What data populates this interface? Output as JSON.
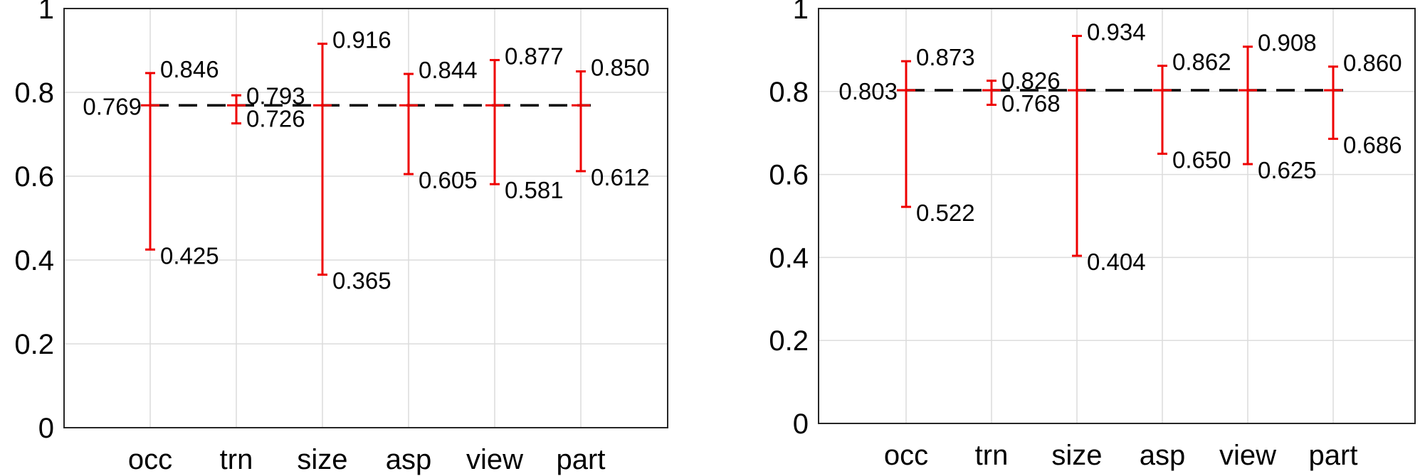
{
  "chart_data": [
    {
      "type": "errorbar",
      "categories": [
        "occ",
        "trn",
        "size",
        "asp",
        "view",
        "part"
      ],
      "ylim": [
        0,
        1
      ],
      "yticks": [
        "0",
        "0.2",
        "0.4",
        "0.6",
        "0.8",
        "1"
      ],
      "grid": true,
      "baseline": {
        "value": 0.769,
        "label": "0.769",
        "style": "dashed",
        "color": "#000000"
      },
      "series": [
        {
          "color": "#ee0000",
          "values": [
            {
              "center": 0.769,
              "high": 0.846,
              "low": 0.425,
              "high_label": "0.846",
              "low_label": "0.425"
            },
            {
              "center": 0.769,
              "high": 0.793,
              "low": 0.726,
              "high_label": "0.793",
              "low_label": "0.726"
            },
            {
              "center": 0.769,
              "high": 0.916,
              "low": 0.365,
              "high_label": "0.916",
              "low_label": "0.365"
            },
            {
              "center": 0.769,
              "high": 0.844,
              "low": 0.605,
              "high_label": "0.844",
              "low_label": "0.605"
            },
            {
              "center": 0.769,
              "high": 0.877,
              "low": 0.581,
              "high_label": "0.877",
              "low_label": "0.581"
            },
            {
              "center": 0.769,
              "high": 0.85,
              "low": 0.612,
              "high_label": "0.850",
              "low_label": "0.612"
            }
          ]
        }
      ]
    },
    {
      "type": "errorbar",
      "categories": [
        "occ",
        "trn",
        "size",
        "asp",
        "view",
        "part"
      ],
      "ylim": [
        0,
        1
      ],
      "yticks": [
        "0",
        "0.2",
        "0.4",
        "0.6",
        "0.8",
        "1"
      ],
      "grid": true,
      "baseline": {
        "value": 0.803,
        "label": "0.803",
        "style": "dashed",
        "color": "#000000"
      },
      "series": [
        {
          "color": "#ee0000",
          "values": [
            {
              "center": 0.803,
              "high": 0.873,
              "low": 0.522,
              "high_label": "0.873",
              "low_label": "0.522"
            },
            {
              "center": 0.803,
              "high": 0.826,
              "low": 0.768,
              "high_label": "0.826",
              "low_label": "0.768"
            },
            {
              "center": 0.803,
              "high": 0.934,
              "low": 0.404,
              "high_label": "0.934",
              "low_label": "0.404"
            },
            {
              "center": 0.803,
              "high": 0.862,
              "low": 0.65,
              "high_label": "0.862",
              "low_label": "0.650"
            },
            {
              "center": 0.803,
              "high": 0.908,
              "low": 0.625,
              "high_label": "0.908",
              "low_label": "0.625"
            },
            {
              "center": 0.803,
              "high": 0.86,
              "low": 0.686,
              "high_label": "0.860",
              "low_label": "0.686"
            }
          ]
        }
      ]
    }
  ]
}
